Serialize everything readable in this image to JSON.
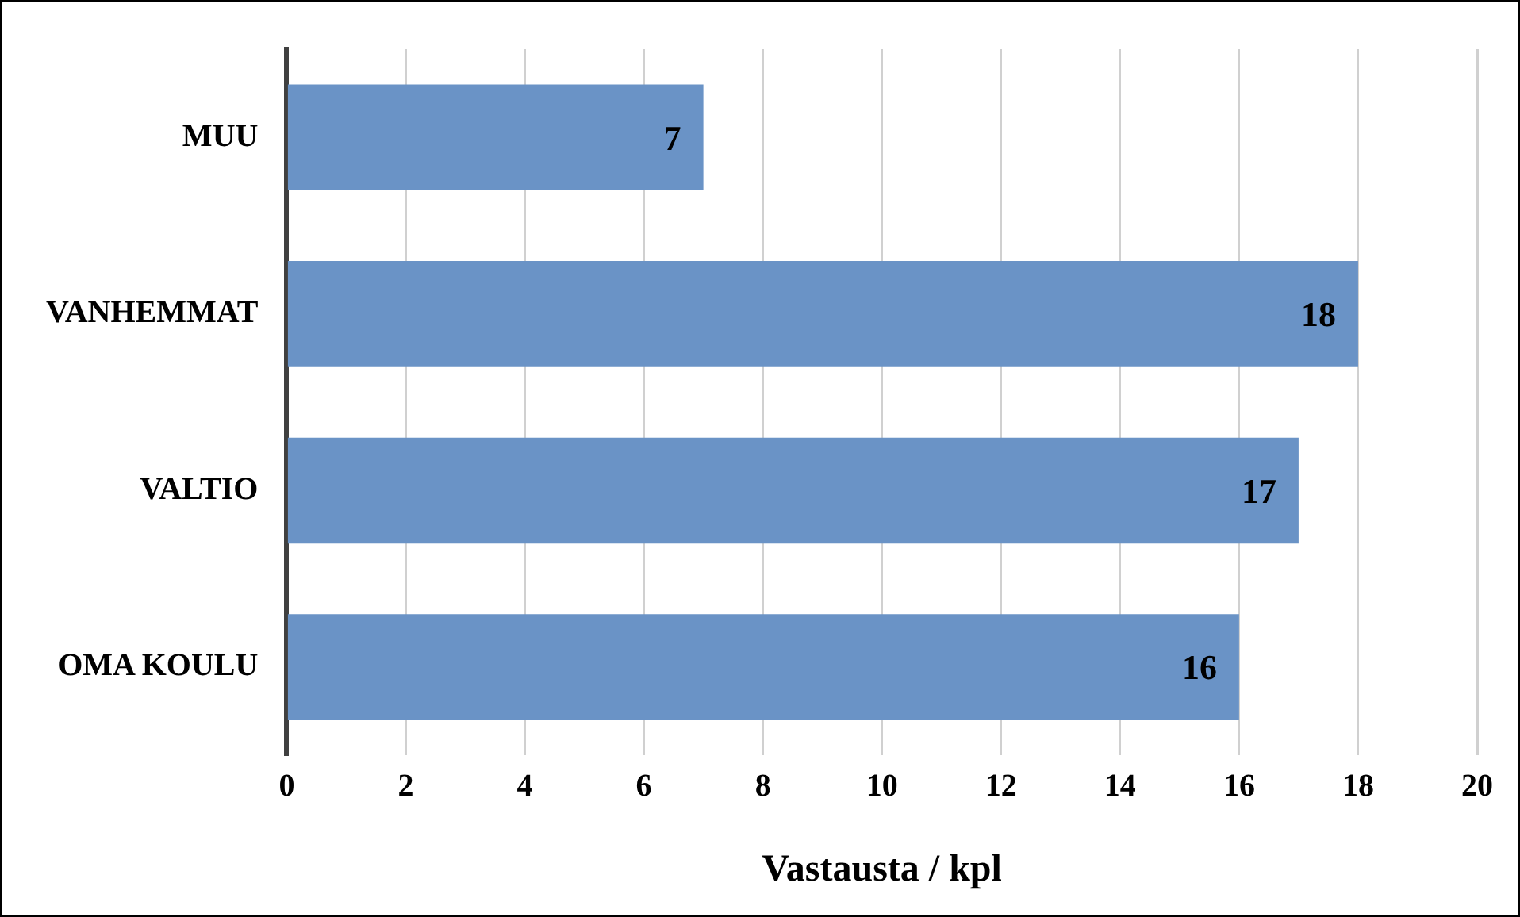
{
  "chart_data": {
    "type": "bar",
    "orientation": "horizontal",
    "xlabel": "Vastausta / kpl",
    "categories": [
      "MUU",
      "VANHEMMAT",
      "VALTIO",
      "OMA KOULU"
    ],
    "values": [
      7,
      18,
      17,
      16
    ],
    "color": "#6a93c6",
    "xlim": [
      0,
      20
    ],
    "xticks": [
      0,
      2,
      4,
      6,
      8,
      10,
      12,
      14,
      16,
      18,
      20
    ],
    "grid": "x",
    "data_labels": true
  }
}
